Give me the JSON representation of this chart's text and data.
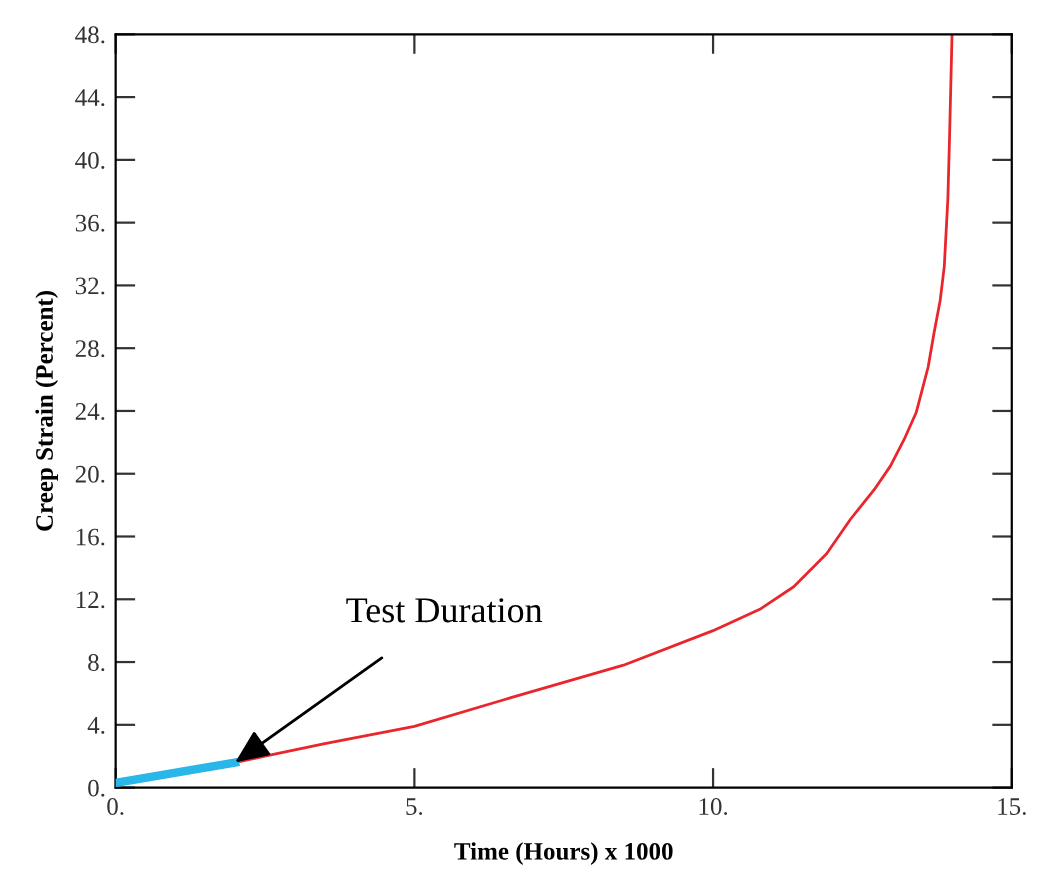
{
  "chart_data": {
    "type": "line",
    "xlabel": "Time (Hours) x 1000",
    "ylabel": "Creep Strain (Percent)",
    "series": [
      {
        "color": "#e8262b",
        "x": [
          2,
          2.5,
          3.5,
          5,
          6.5,
          8.5,
          10,
          10.8,
          11.35,
          11.9,
          12.3,
          12.7,
          12.97,
          13.2,
          13.4,
          13.6,
          13.7,
          13.8,
          13.87,
          13.93,
          13.96,
          14.0
        ],
        "values": [
          1.6,
          2.0,
          2.8,
          3.9,
          5.6,
          7.8,
          10.0,
          11.4,
          12.8,
          14.9,
          17.1,
          19.0,
          20.5,
          22.2,
          23.9,
          26.8,
          29.0,
          31.0,
          33.2,
          37.5,
          41.7,
          48.0
        ]
      },
      {
        "color": "#29b6e8",
        "x": [
          0,
          2.0
        ],
        "values": [
          0.3,
          1.6
        ]
      }
    ],
    "annotations": [
      {
        "text": "Test Duration",
        "x": 2.0,
        "y": 1.6
      }
    ],
    "xlim": [
      0,
      15
    ],
    "ylim": [
      0,
      48
    ],
    "xticks": [
      {
        "value": 0,
        "label": "0."
      },
      {
        "value": 5,
        "label": "5."
      },
      {
        "value": 10,
        "label": "10."
      },
      {
        "value": 15,
        "label": "15."
      }
    ],
    "yticks": [
      {
        "value": 0,
        "label": "0."
      },
      {
        "value": 4,
        "label": "4."
      },
      {
        "value": 8,
        "label": "8."
      },
      {
        "value": 12,
        "label": "12."
      },
      {
        "value": 16,
        "label": "16."
      },
      {
        "value": 20,
        "label": "20."
      },
      {
        "value": 24,
        "label": "24."
      },
      {
        "value": 28,
        "label": "28."
      },
      {
        "value": 32,
        "label": "32."
      },
      {
        "value": 36,
        "label": "36."
      },
      {
        "value": 40,
        "label": "40."
      },
      {
        "value": 44,
        "label": "44."
      },
      {
        "value": 48,
        "label": "48."
      }
    ],
    "grid": false,
    "legend": false,
    "marker": "none",
    "line_style": "solid"
  }
}
